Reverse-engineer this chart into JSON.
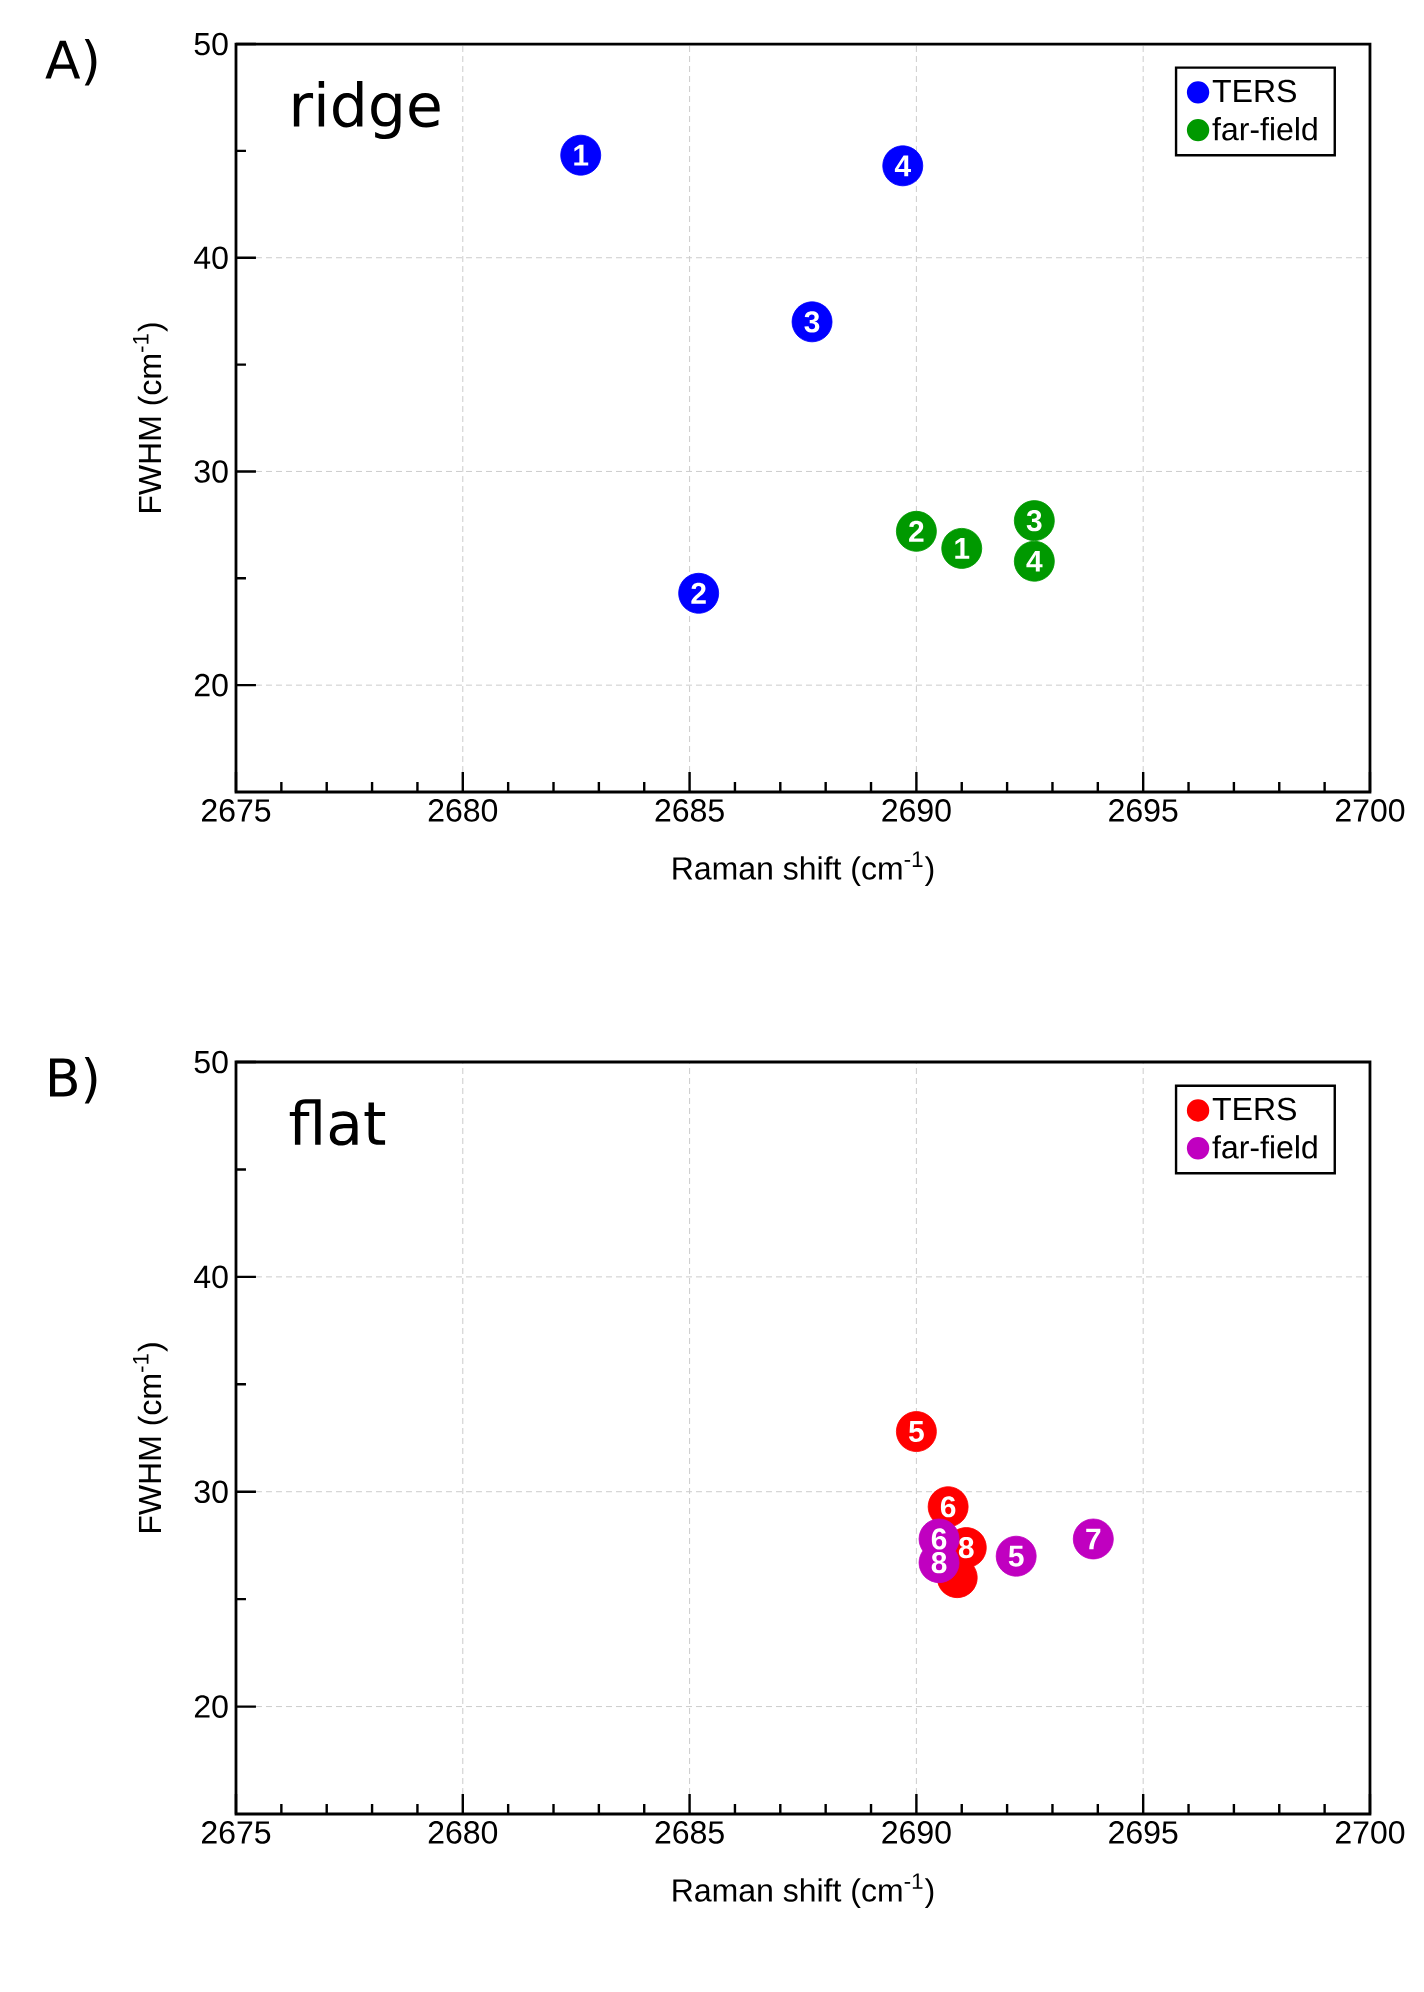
{
  "chart_data": [
    {
      "type": "scatter",
      "title": "A)",
      "xlabel": "Raman shift (cm$^{-1}$)",
      "ylabel": "FWHM (cm$^{-1}$)",
      "xlim": [
        2675,
        2700
      ],
      "ylim": [
        15,
        50
      ],
      "xticks": [
        2675,
        2680,
        2685,
        2690,
        2695,
        2700
      ],
      "yticks": [
        20,
        30,
        40,
        50
      ],
      "grid": true,
      "legend": "top right",
      "marker": "circle",
      "series": [
        {
          "name": "TERS",
          "color": "#0000ff",
          "x": [
            2682.6,
            2685.2,
            2687.7,
            2689.7
          ],
          "values": [
            44.8,
            24.3,
            37.0,
            44.3
          ]
        },
        {
          "name": "far-field",
          "color": "#009900",
          "x": [
            2691.0,
            2690.0,
            2692.6,
            2692.6
          ],
          "values": [
            26.4,
            27.2,
            27.7,
            25.8
          ]
        }
      ],
      "annotations": [
        "ridge",
        {
          "text": "1",
          "x": 2682.6,
          "y": 44.8
        },
        {
          "text": "2",
          "x": 2685.2,
          "y": 24.3
        },
        {
          "text": "3",
          "x": 2687.7,
          "y": 37.0
        },
        {
          "text": "4",
          "x": 2689.7,
          "y": 44.3
        },
        {
          "text": "2",
          "x": 2690.0,
          "y": 27.2
        },
        {
          "text": "1",
          "x": 2691.0,
          "y": 26.4
        },
        {
          "text": "3",
          "x": 2692.6,
          "y": 27.7
        },
        {
          "text": "4",
          "x": 2692.6,
          "y": 25.8
        }
      ]
    },
    {
      "type": "scatter",
      "title": "B)",
      "xlabel": "Raman shift (cm$^{-1}$)",
      "ylabel": "FWHM (cm$^{-1}$)",
      "xlim": [
        2675,
        2700
      ],
      "ylim": [
        15,
        50
      ],
      "xticks": [
        2675,
        2680,
        2685,
        2690,
        2695,
        2700
      ],
      "yticks": [
        20,
        30,
        40,
        50
      ],
      "grid": true,
      "legend": "top right",
      "marker": "circle",
      "series": [
        {
          "name": "TERS",
          "color": "#ff0000",
          "x": [
            2690.0,
            2690.7,
            2690.9,
            2691.1
          ],
          "values": [
            32.8,
            29.3,
            26.0,
            27.4
          ]
        },
        {
          "name": "far-field",
          "color": "#c000c0",
          "x": [
            2692.2,
            2690.5,
            2693.9,
            2690.5
          ],
          "values": [
            27.0,
            27.8,
            27.8,
            26.7
          ]
        }
      ],
      "annotations": [
        "flat",
        {
          "text": "5",
          "x": 2690.0,
          "y": 32.8
        },
        {
          "text": "6",
          "x": 2690.7,
          "y": 29.3
        },
        {
          "text": "8",
          "x": 2691.1,
          "y": 27.4
        },
        {
          "text": "5",
          "x": 2692.2,
          "y": 27.0
        },
        {
          "text": "6",
          "x": 2690.5,
          "y": 27.8
        },
        {
          "text": "7",
          "x": 2693.9,
          "y": 27.8
        },
        {
          "text": "8",
          "x": 2690.5,
          "y": 26.7
        }
      ]
    }
  ]
}
